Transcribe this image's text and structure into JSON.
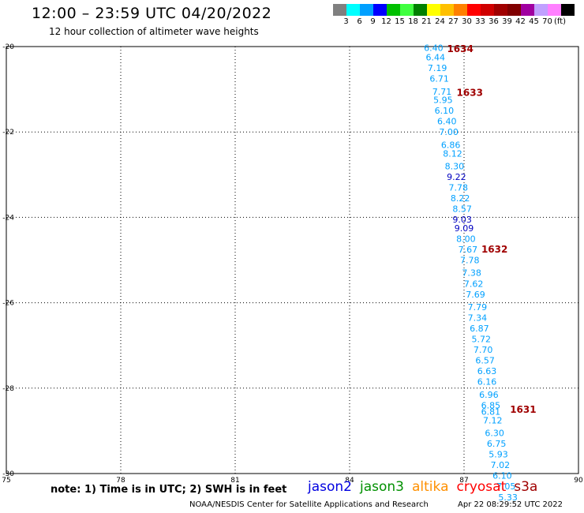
{
  "header": {
    "title": "12:00 – 23:59 UTC 04/20/2022",
    "subtitle": "12 hour collection of altimeter wave heights"
  },
  "colorbar": {
    "colors": [
      "#808080",
      "#00ffff",
      "#00a0ff",
      "#0000ff",
      "#00c000",
      "#40ff40",
      "#008000",
      "#ffff00",
      "#ffc000",
      "#ff8000",
      "#ff0000",
      "#d00000",
      "#a00000",
      "#800000",
      "#a000a0",
      "#c0a0ff",
      "#ff80ff",
      "#000000"
    ],
    "labels": [
      "3",
      "6",
      "9",
      "12",
      "15",
      "18",
      "21",
      "24",
      "27",
      "30",
      "33",
      "36",
      "39",
      "42",
      "45",
      "70"
    ],
    "unit": "(ft)"
  },
  "note": "note: 1) Time is in UTC; 2) SWH is in feet",
  "missions": [
    {
      "name": "jason2",
      "color": "#0000e0"
    },
    {
      "name": "jason3",
      "color": "#009000"
    },
    {
      "name": "altika",
      "color": "#ff9000"
    },
    {
      "name": "cryosat",
      "color": "#ff0000"
    },
    {
      "name": "s3a",
      "color": "#a00000"
    }
  ],
  "footer": {
    "org": "NOAA/NESDIS Center for Satellite Applications and Research",
    "timestamp": "Apr 22 08:29:52 UTC 2022"
  },
  "chart_data": {
    "type": "scatter",
    "xlim": [
      75,
      90
    ],
    "ylim": [
      -30,
      -20
    ],
    "xticks": [
      "75",
      "78",
      "81",
      "84",
      "87",
      "90"
    ],
    "yticks": [
      "-20",
      "-22",
      "-24",
      "-26",
      "-28",
      "-30"
    ],
    "grid": true,
    "series": [
      {
        "name": "cryosat",
        "color_low": "#00a0ff",
        "color_high": "#0000c0",
        "points": [
          {
            "x": 86.2,
            "y": -20.03,
            "value": "6.40"
          },
          {
            "x": 86.25,
            "y": -20.25,
            "value": "6.44"
          },
          {
            "x": 86.3,
            "y": -20.5,
            "value": "7.19"
          },
          {
            "x": 86.35,
            "y": -20.75,
            "value": "6.71"
          },
          {
            "x": 86.42,
            "y": -21.05,
            "value": "7.71"
          },
          {
            "x": 86.45,
            "y": -21.25,
            "value": "5.95"
          },
          {
            "x": 86.48,
            "y": -21.5,
            "value": "6.10"
          },
          {
            "x": 86.55,
            "y": -21.75,
            "value": "6.40"
          },
          {
            "x": 86.6,
            "y": -22.0,
            "value": "7.00"
          },
          {
            "x": 86.65,
            "y": -22.3,
            "value": "6.86"
          },
          {
            "x": 86.7,
            "y": -22.5,
            "value": "8.12"
          },
          {
            "x": 86.75,
            "y": -22.8,
            "value": "8.30"
          },
          {
            "x": 86.8,
            "y": -23.05,
            "value": "9.22"
          },
          {
            "x": 86.85,
            "y": -23.3,
            "value": "7.78"
          },
          {
            "x": 86.9,
            "y": -23.55,
            "value": "8.22"
          },
          {
            "x": 86.95,
            "y": -23.8,
            "value": "8.57"
          },
          {
            "x": 86.95,
            "y": -24.05,
            "value": "9.03"
          },
          {
            "x": 87.0,
            "y": -24.25,
            "value": "9.09"
          },
          {
            "x": 87.05,
            "y": -24.5,
            "value": "8.00"
          },
          {
            "x": 87.1,
            "y": -24.75,
            "value": "7.67"
          },
          {
            "x": 87.15,
            "y": -25.0,
            "value": "7.78"
          },
          {
            "x": 87.2,
            "y": -25.3,
            "value": "7.38"
          },
          {
            "x": 87.25,
            "y": -25.55,
            "value": "7.62"
          },
          {
            "x": 87.3,
            "y": -25.8,
            "value": "7.69"
          },
          {
            "x": 87.35,
            "y": -26.1,
            "value": "7.79"
          },
          {
            "x": 87.35,
            "y": -26.35,
            "value": "7.34"
          },
          {
            "x": 87.4,
            "y": -26.6,
            "value": "6.87"
          },
          {
            "x": 87.45,
            "y": -26.85,
            "value": "5.72"
          },
          {
            "x": 87.5,
            "y": -27.1,
            "value": "7.70"
          },
          {
            "x": 87.55,
            "y": -27.35,
            "value": "6.57"
          },
          {
            "x": 87.6,
            "y": -27.6,
            "value": "6.63"
          },
          {
            "x": 87.6,
            "y": -27.85,
            "value": "6.16"
          },
          {
            "x": 87.65,
            "y": -28.15,
            "value": "6.96"
          },
          {
            "x": 87.7,
            "y": -28.4,
            "value": "6.85"
          },
          {
            "x": 87.7,
            "y": -28.55,
            "value": "6.81"
          },
          {
            "x": 87.75,
            "y": -28.75,
            "value": "7.12"
          },
          {
            "x": 87.8,
            "y": -29.05,
            "value": "6.30"
          },
          {
            "x": 87.85,
            "y": -29.3,
            "value": "6.75"
          },
          {
            "x": 87.9,
            "y": -29.55,
            "value": "5.93"
          },
          {
            "x": 87.95,
            "y": -29.8,
            "value": "7.02"
          },
          {
            "x": 88.0,
            "y": -30.05,
            "value": "6.10"
          },
          {
            "x": 88.1,
            "y": -30.3,
            "value": "7.05"
          },
          {
            "x": 88.15,
            "y": -30.55,
            "value": "5.33"
          }
        ]
      }
    ],
    "annotations": [
      {
        "text": "1634",
        "x": 86.9,
        "y": -20.06,
        "color": "#a00000"
      },
      {
        "text": "1633",
        "x": 87.15,
        "y": -21.08,
        "color": "#a00000"
      },
      {
        "text": "1632",
        "x": 87.8,
        "y": -24.75,
        "color": "#a00000"
      },
      {
        "text": "1631",
        "x": 88.55,
        "y": -28.5,
        "color": "#a00000"
      }
    ]
  }
}
